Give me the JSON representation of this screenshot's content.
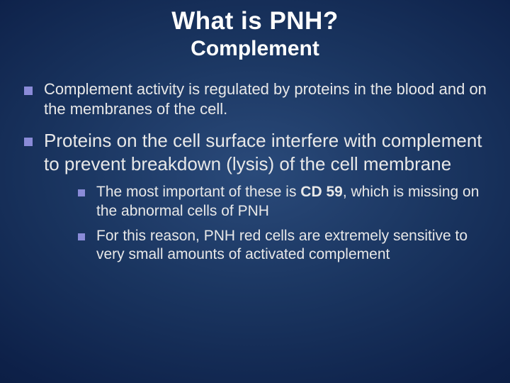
{
  "background": {
    "gradient_center": "#2a4a7a",
    "gradient_mid": "#1a3560",
    "gradient_outer": "#0d2048",
    "gradient_edge": "#06132e"
  },
  "bullet_color": "#8a8bd8",
  "text_color": "#e8e8e8",
  "title_color": "#ffffff",
  "title": "What is PNH?",
  "title_fontsize": 35,
  "subtitle": "Complement",
  "subtitle_fontsize": 30,
  "bullets": [
    {
      "text": "Complement activity is regulated by proteins in the blood and on the membranes of the cell.",
      "fontsize": 22
    },
    {
      "text": "Proteins on the cell surface interfere with complement to prevent breakdown (lysis) of the cell membrane",
      "fontsize": 26,
      "sub": [
        {
          "pre": "The most important of these is ",
          "bold": "CD 59",
          "post": ", which is missing on the abnormal cells of PNH",
          "fontsize": 21
        },
        {
          "pre": "For this reason, PNH red cells are extremely sensitive to very small amounts of activated complement",
          "bold": "",
          "post": "",
          "fontsize": 21
        }
      ]
    }
  ]
}
